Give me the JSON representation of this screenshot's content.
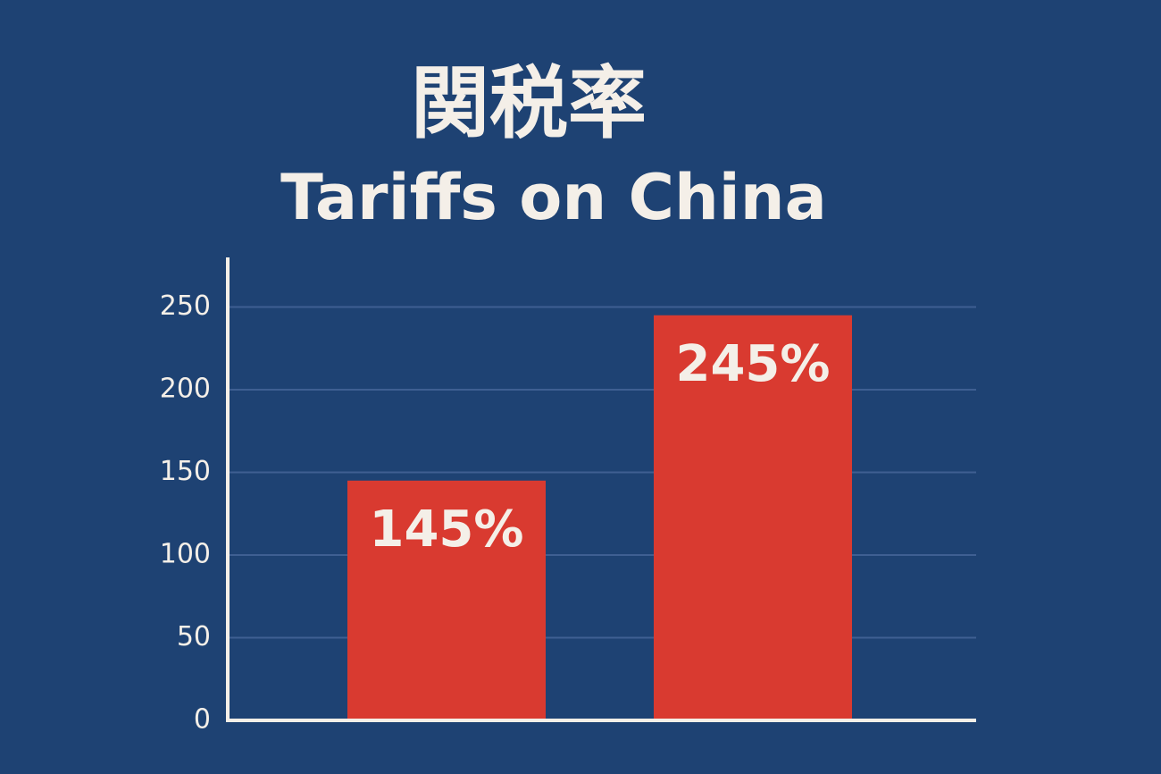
{
  "chart_data": {
    "type": "bar",
    "title": "関税率",
    "subtitle": "Tariffs on China",
    "categories": [
      null,
      null
    ],
    "values": [
      145,
      245
    ],
    "value_labels": [
      "145%",
      "245%"
    ],
    "color": "#d93a30",
    "ylim": [
      0,
      280
    ],
    "yticks": [
      0,
      50,
      100,
      150,
      200,
      250
    ],
    "grid": true
  }
}
